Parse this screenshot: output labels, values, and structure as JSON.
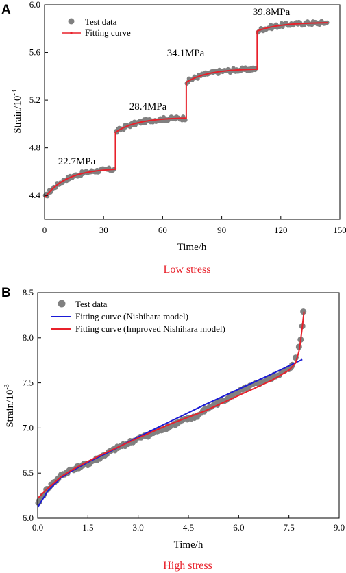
{
  "chart_data": [
    {
      "panel": "A",
      "type": "scatter",
      "caption": "Low stress",
      "xlabel": "Time/h",
      "ylabel_base": "Strain/10",
      "ylabel_exp": "-3",
      "xlim": [
        0,
        150
      ],
      "ylim": [
        4.2,
        6.0
      ],
      "xticks": [
        "0",
        "30",
        "60",
        "90",
        "120",
        "150"
      ],
      "yticks": [
        "4.4",
        "4.8",
        "5.2",
        "5.6",
        "6.0"
      ],
      "legend": {
        "placement": "top-left",
        "test_label": "Test data",
        "fit_label": "Fitting curve"
      },
      "colors": {
        "test": "#808080",
        "fit": "#e8202a"
      },
      "stages": [
        {
          "label": "22.7MPa",
          "t_start": 0,
          "t_end": 36,
          "strain_start": 4.38,
          "strain_end": 4.62
        },
        {
          "label": "28.4MPa",
          "t_start": 36,
          "t_end": 72,
          "strain_start": 4.93,
          "strain_end": 5.05
        },
        {
          "label": "34.1MPa",
          "t_start": 72,
          "t_end": 108,
          "strain_start": 5.35,
          "strain_end": 5.46
        },
        {
          "label": "39.8MPa",
          "t_start": 108,
          "t_end": 144,
          "strain_start": 5.78,
          "strain_end": 5.85
        }
      ]
    },
    {
      "panel": "B",
      "type": "scatter",
      "caption": "High stress",
      "xlabel": "Time/h",
      "ylabel_base": "Strain/10",
      "ylabel_exp": "-3",
      "xlim": [
        0,
        9.0
      ],
      "ylim": [
        6.0,
        8.5
      ],
      "xticks": [
        "0.0",
        "1.5",
        "3.0",
        "4.5",
        "6.0",
        "7.5",
        "9.0"
      ],
      "yticks": [
        "6.0",
        "6.5",
        "7.0",
        "7.5",
        "8.0",
        "8.5"
      ],
      "legend": {
        "placement": "top-left",
        "test_label": "Test data",
        "fit1_label": "Fitting curve (Nishihara model)",
        "fit2_label": "Fitting curve (Improved Nishihara model)"
      },
      "colors": {
        "test": "#808080",
        "fit1": "#1a1ad6",
        "fit2": "#e8202a"
      },
      "test_data": {
        "t": [
          0.0,
          0.1,
          0.2,
          0.3,
          0.5,
          0.7,
          1.0,
          1.5,
          2.0,
          2.5,
          3.0,
          3.5,
          4.0,
          4.5,
          4.8,
          5.0,
          5.5,
          6.0,
          6.5,
          7.0,
          7.5,
          7.6,
          7.7,
          7.8,
          7.85,
          7.9,
          7.93
        ],
        "strain": [
          6.15,
          6.22,
          6.28,
          6.33,
          6.4,
          6.47,
          6.54,
          6.6,
          6.7,
          6.8,
          6.88,
          6.95,
          7.03,
          7.1,
          7.14,
          7.2,
          7.3,
          7.4,
          7.48,
          7.56,
          7.65,
          7.7,
          7.78,
          7.9,
          7.98,
          8.13,
          8.29
        ]
      },
      "nishihara_fit": {
        "t": [
          0.0,
          0.3,
          0.7,
          1.0,
          1.5,
          2.0,
          3.0,
          4.0,
          5.0,
          6.0,
          7.0,
          7.9
        ],
        "strain": [
          6.12,
          6.3,
          6.45,
          6.52,
          6.62,
          6.71,
          6.9,
          7.08,
          7.26,
          7.43,
          7.6,
          7.76
        ]
      },
      "improved_fit": {
        "t": [
          0.0,
          0.3,
          0.7,
          1.0,
          1.5,
          2.0,
          3.0,
          4.0,
          4.5,
          5.0,
          6.0,
          7.0,
          7.5,
          7.7,
          7.8,
          7.85,
          7.9,
          7.95
        ],
        "strain": [
          6.22,
          6.33,
          6.46,
          6.53,
          6.63,
          6.72,
          6.89,
          7.05,
          7.12,
          7.19,
          7.36,
          7.53,
          7.64,
          7.72,
          7.85,
          7.97,
          8.12,
          8.29
        ]
      }
    }
  ]
}
